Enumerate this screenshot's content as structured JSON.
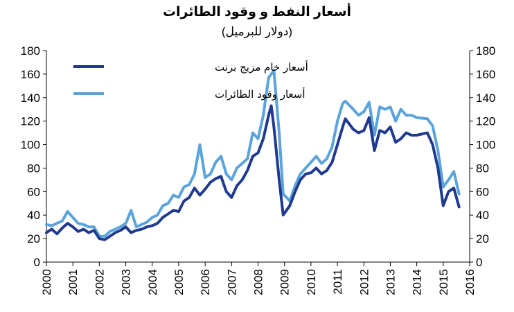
{
  "chart_data": {
    "type": "line",
    "title": "أسعار النفط و وقود الطائرات",
    "subtitle": "(دولار للبرميل)",
    "xlim": [
      2000,
      2016
    ],
    "ylim": [
      0,
      180
    ],
    "x_ticks": [
      "2000",
      "2001",
      "2002",
      "2003",
      "2004",
      "2005",
      "2006",
      "2007",
      "2008",
      "2009",
      "2010",
      "2011",
      "2012",
      "2013",
      "2014",
      "2015",
      "2016"
    ],
    "y_ticks": [
      "0",
      "20",
      "40",
      "60",
      "80",
      "100",
      "120",
      "140",
      "160",
      "180"
    ],
    "grid": false,
    "legend_position": "top-left",
    "series": [
      {
        "name": "أسعار خام مزيج برنت",
        "color": "#1f3a8f",
        "points": [
          [
            2000.0,
            25
          ],
          [
            2000.2,
            28
          ],
          [
            2000.4,
            24
          ],
          [
            2000.6,
            29
          ],
          [
            2000.8,
            33
          ],
          [
            2001.0,
            30
          ],
          [
            2001.2,
            26
          ],
          [
            2001.4,
            28
          ],
          [
            2001.6,
            25
          ],
          [
            2001.8,
            27
          ],
          [
            2002.0,
            20
          ],
          [
            2002.2,
            19
          ],
          [
            2002.4,
            22
          ],
          [
            2002.6,
            25
          ],
          [
            2002.8,
            27
          ],
          [
            2003.0,
            30
          ],
          [
            2003.2,
            25
          ],
          [
            2003.4,
            27
          ],
          [
            2003.6,
            28
          ],
          [
            2003.8,
            30
          ],
          [
            2004.0,
            31
          ],
          [
            2004.2,
            33
          ],
          [
            2004.4,
            38
          ],
          [
            2004.6,
            41
          ],
          [
            2004.8,
            44
          ],
          [
            2005.0,
            43
          ],
          [
            2005.2,
            52
          ],
          [
            2005.4,
            55
          ],
          [
            2005.6,
            63
          ],
          [
            2005.8,
            57
          ],
          [
            2006.0,
            62
          ],
          [
            2006.2,
            68
          ],
          [
            2006.4,
            71
          ],
          [
            2006.6,
            73
          ],
          [
            2006.8,
            60
          ],
          [
            2007.0,
            55
          ],
          [
            2007.2,
            65
          ],
          [
            2007.4,
            70
          ],
          [
            2007.6,
            78
          ],
          [
            2007.8,
            90
          ],
          [
            2008.0,
            93
          ],
          [
            2008.2,
            105
          ],
          [
            2008.4,
            125
          ],
          [
            2008.5,
            133
          ],
          [
            2008.6,
            115
          ],
          [
            2008.8,
            70
          ],
          [
            2008.95,
            40
          ],
          [
            2009.2,
            48
          ],
          [
            2009.4,
            60
          ],
          [
            2009.6,
            70
          ],
          [
            2009.8,
            75
          ],
          [
            2010.0,
            76
          ],
          [
            2010.2,
            80
          ],
          [
            2010.4,
            75
          ],
          [
            2010.6,
            78
          ],
          [
            2010.8,
            85
          ],
          [
            2011.0,
            100
          ],
          [
            2011.2,
            115
          ],
          [
            2011.3,
            122
          ],
          [
            2011.6,
            113
          ],
          [
            2011.8,
            110
          ],
          [
            2012.0,
            112
          ],
          [
            2012.2,
            123
          ],
          [
            2012.4,
            95
          ],
          [
            2012.6,
            112
          ],
          [
            2012.8,
            110
          ],
          [
            2013.0,
            115
          ],
          [
            2013.2,
            102
          ],
          [
            2013.4,
            105
          ],
          [
            2013.6,
            110
          ],
          [
            2013.8,
            108
          ],
          [
            2014.0,
            108
          ],
          [
            2014.4,
            110
          ],
          [
            2014.6,
            100
          ],
          [
            2014.8,
            80
          ],
          [
            2015.0,
            48
          ],
          [
            2015.2,
            60
          ],
          [
            2015.4,
            63
          ],
          [
            2015.6,
            47
          ]
        ]
      },
      {
        "name": "أسعار وقود الطائرات",
        "color": "#5ba3db",
        "points": [
          [
            2000.0,
            32
          ],
          [
            2000.2,
            31
          ],
          [
            2000.4,
            33
          ],
          [
            2000.6,
            35
          ],
          [
            2000.8,
            43
          ],
          [
            2001.0,
            38
          ],
          [
            2001.2,
            33
          ],
          [
            2001.4,
            32
          ],
          [
            2001.6,
            30
          ],
          [
            2001.8,
            30
          ],
          [
            2002.0,
            22
          ],
          [
            2002.2,
            22
          ],
          [
            2002.4,
            26
          ],
          [
            2002.6,
            28
          ],
          [
            2002.8,
            30
          ],
          [
            2003.0,
            33
          ],
          [
            2003.2,
            44
          ],
          [
            2003.4,
            30
          ],
          [
            2003.6,
            32
          ],
          [
            2003.8,
            34
          ],
          [
            2004.0,
            38
          ],
          [
            2004.2,
            40
          ],
          [
            2004.4,
            48
          ],
          [
            2004.6,
            50
          ],
          [
            2004.8,
            57
          ],
          [
            2005.0,
            55
          ],
          [
            2005.2,
            64
          ],
          [
            2005.4,
            66
          ],
          [
            2005.6,
            75
          ],
          [
            2005.8,
            100
          ],
          [
            2006.0,
            72
          ],
          [
            2006.2,
            75
          ],
          [
            2006.4,
            85
          ],
          [
            2006.6,
            90
          ],
          [
            2006.8,
            75
          ],
          [
            2007.0,
            70
          ],
          [
            2007.2,
            80
          ],
          [
            2007.4,
            84
          ],
          [
            2007.6,
            88
          ],
          [
            2007.8,
            110
          ],
          [
            2008.0,
            105
          ],
          [
            2008.2,
            125
          ],
          [
            2008.4,
            157
          ],
          [
            2008.6,
            163
          ],
          [
            2008.8,
            110
          ],
          [
            2008.95,
            58
          ],
          [
            2009.2,
            52
          ],
          [
            2009.4,
            65
          ],
          [
            2009.6,
            75
          ],
          [
            2009.8,
            80
          ],
          [
            2010.0,
            85
          ],
          [
            2010.2,
            90
          ],
          [
            2010.4,
            84
          ],
          [
            2010.6,
            88
          ],
          [
            2010.8,
            98
          ],
          [
            2011.0,
            120
          ],
          [
            2011.2,
            135
          ],
          [
            2011.3,
            137
          ],
          [
            2011.6,
            130
          ],
          [
            2011.8,
            125
          ],
          [
            2012.0,
            128
          ],
          [
            2012.2,
            136
          ],
          [
            2012.4,
            108
          ],
          [
            2012.6,
            132
          ],
          [
            2012.8,
            130
          ],
          [
            2013.0,
            132
          ],
          [
            2013.2,
            120
          ],
          [
            2013.4,
            130
          ],
          [
            2013.6,
            125
          ],
          [
            2013.8,
            125
          ],
          [
            2014.0,
            123
          ],
          [
            2014.4,
            122
          ],
          [
            2014.6,
            116
          ],
          [
            2014.8,
            95
          ],
          [
            2015.0,
            64
          ],
          [
            2015.2,
            70
          ],
          [
            2015.4,
            77
          ],
          [
            2015.6,
            58
          ]
        ]
      }
    ]
  }
}
